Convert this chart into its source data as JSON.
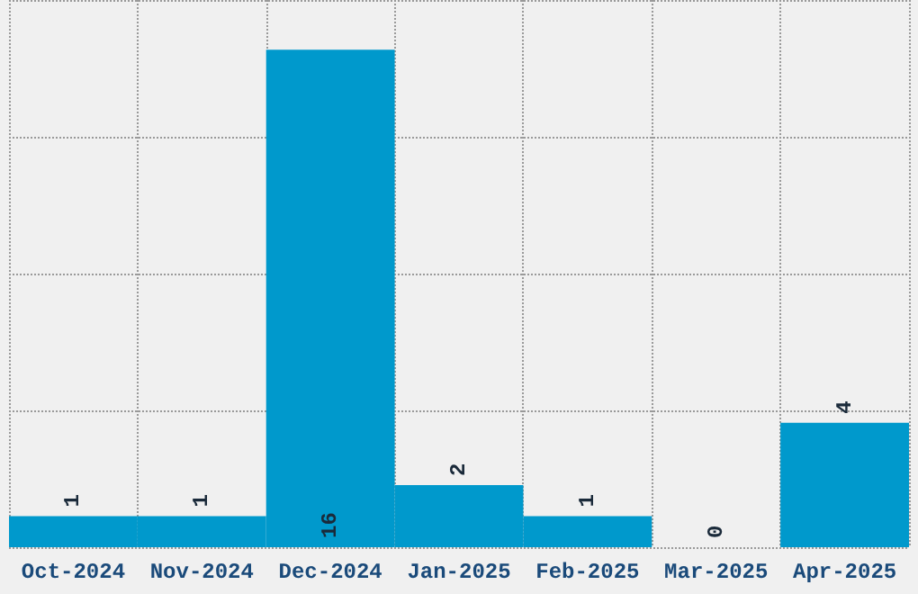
{
  "chart_data": {
    "type": "bar",
    "categories": [
      "Oct-2024",
      "Nov-2024",
      "Dec-2024",
      "Jan-2025",
      "Feb-2025",
      "Mar-2025",
      "Apr-2025"
    ],
    "values": [
      1,
      1,
      16,
      2,
      1,
      0,
      4
    ],
    "color": "#0099cc",
    "data_labels": true,
    "ylim": [
      0,
      17.6
    ],
    "yticks": [
      {
        "value": 0,
        "label": null
      },
      {
        "value": 4.4,
        "label": null
      },
      {
        "value": 8.8,
        "label": null
      },
      {
        "value": 13.2,
        "label": null
      },
      {
        "value": 17.6,
        "label": null
      }
    ],
    "tick_labels": "x",
    "grid": true
  }
}
